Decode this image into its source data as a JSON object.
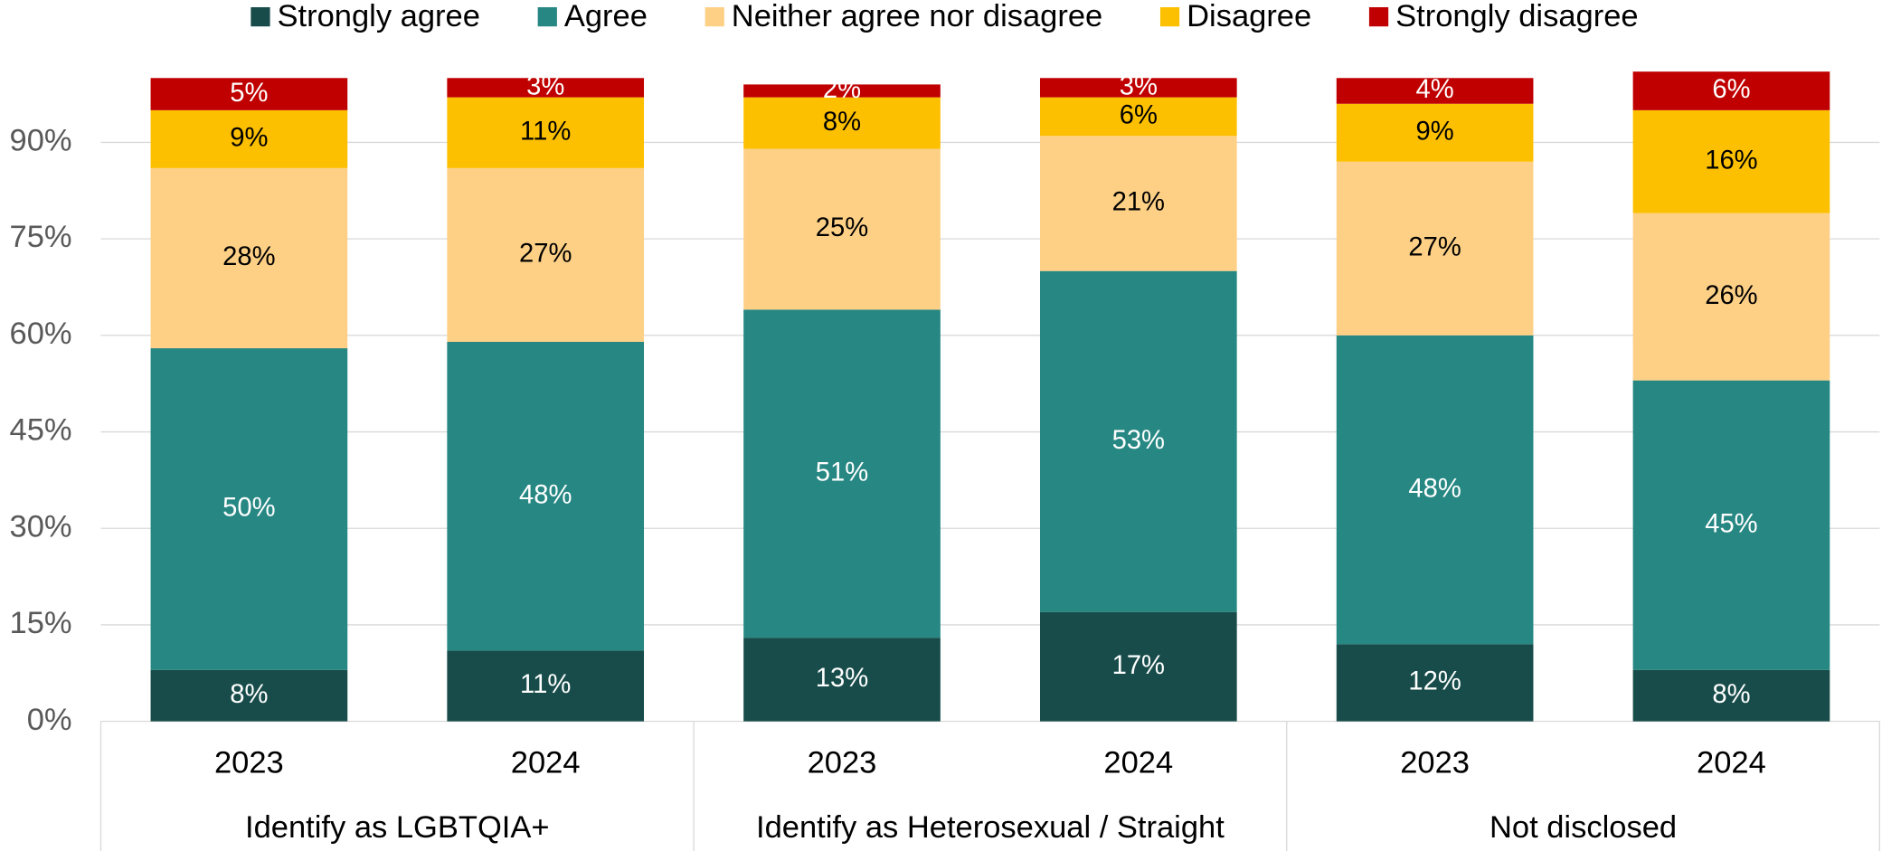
{
  "chart_data": {
    "type": "stacked_bar",
    "categories": [
      "2023",
      "2024",
      "2023",
      "2024",
      "2023",
      "2024"
    ],
    "groups": [
      "Identify as LGBTQIA+",
      "Identify as Heterosexual / Straight",
      "Not disclosed"
    ],
    "series": [
      {
        "name": "Strongly agree",
        "color": "#174c4a",
        "label_color": "#ffffff",
        "values": [
          8,
          11,
          13,
          17,
          12,
          8
        ],
        "value_labels": [
          "8%",
          "11%",
          "13%",
          "17%",
          "12%",
          "8%"
        ]
      },
      {
        "name": "Agree",
        "color": "#268783",
        "label_color": "#ffffff",
        "values": [
          50,
          48,
          51,
          53,
          48,
          45
        ],
        "value_labels": [
          "50%",
          "48%",
          "51%",
          "53%",
          "48%",
          "45%"
        ]
      },
      {
        "name": "Neither agree nor disagree",
        "color": "#fdd086",
        "label_color": "#000000",
        "values": [
          28,
          27,
          25,
          21,
          27,
          26
        ],
        "value_labels": [
          "28%",
          "27%",
          "25%",
          "21%",
          "27%",
          "26%"
        ]
      },
      {
        "name": "Disagree",
        "color": "#fdc000",
        "label_color": "#000000",
        "values": [
          9,
          11,
          8,
          6,
          9,
          16
        ],
        "value_labels": [
          "9%",
          "11%",
          "8%",
          "6%",
          "9%",
          "16%"
        ]
      },
      {
        "name": "Strongly disagree",
        "color": "#c00000",
        "label_color": "#ffffff",
        "values": [
          5,
          3,
          2,
          3,
          4,
          6
        ],
        "value_labels": [
          "5%",
          "3%",
          "2%",
          "3%",
          "4%",
          "6%"
        ]
      }
    ],
    "ylim": [
      0,
      100
    ],
    "yticks": [
      {
        "value": 0,
        "label": "0%"
      },
      {
        "value": 15,
        "label": "15%"
      },
      {
        "value": 30,
        "label": "30%"
      },
      {
        "value": 45,
        "label": "45%"
      },
      {
        "value": 60,
        "label": "60%"
      },
      {
        "value": 75,
        "label": "75%"
      },
      {
        "value": 90,
        "label": "90%"
      }
    ],
    "grid": true,
    "legend": "top"
  }
}
